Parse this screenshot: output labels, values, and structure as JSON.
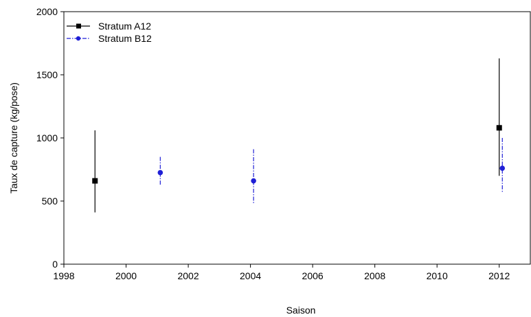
{
  "chart_data": {
    "type": "scatter",
    "title": "",
    "xlabel": "Saison",
    "ylabel": "Taux de capture (kg/pose)",
    "xlim": [
      1998,
      2013
    ],
    "ylim": [
      0,
      2000
    ],
    "xticks": [
      1998,
      2000,
      2002,
      2004,
      2006,
      2008,
      2010,
      2012
    ],
    "yticks": [
      0,
      500,
      1000,
      1500,
      2000
    ],
    "grid": false,
    "legend_position": "top-left",
    "series": [
      {
        "name": "Stratum A12",
        "color": "#000000",
        "marker": "square",
        "line_style": "solid",
        "points": [
          {
            "x": 1999,
            "y": 660,
            "low": 410,
            "high": 1060
          },
          {
            "x": 2012,
            "y": 1080,
            "low": 700,
            "high": 1630
          }
        ]
      },
      {
        "name": "Stratum B12",
        "color": "#1f1fd6",
        "marker": "circle",
        "line_style": "dash-dot",
        "points": [
          {
            "x": 2001.1,
            "y": 725,
            "low": 620,
            "high": 850
          },
          {
            "x": 2004.1,
            "y": 660,
            "low": 480,
            "high": 910
          },
          {
            "x": 2012.1,
            "y": 760,
            "low": 570,
            "high": 1000
          }
        ]
      }
    ]
  }
}
